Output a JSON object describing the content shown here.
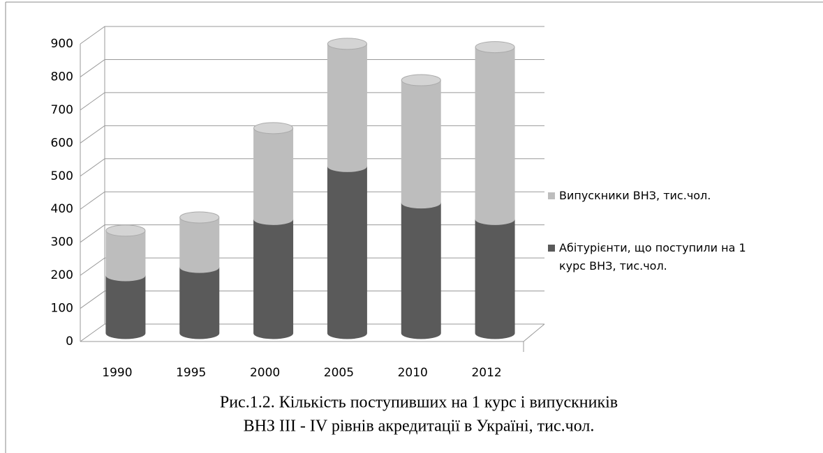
{
  "chart_data": {
    "type": "bar3d_stacked",
    "categories": [
      "1990",
      "1995",
      "2000",
      "2005",
      "2010",
      "2012"
    ],
    "series": [
      {
        "name": "Абітурієнти, що поступили на 1 курс ВНЗ, тис.чол.",
        "color": "#5a5a5a",
        "values": [
          175,
          200,
          345,
          505,
          395,
          345
        ]
      },
      {
        "name": "Випускники ВНЗ, тис.чол.",
        "color": "#bdbdbd",
        "values": [
          135,
          150,
          275,
          370,
          370,
          520
        ]
      }
    ],
    "ylim": [
      0,
      900
    ],
    "yticks": [
      0,
      100,
      200,
      300,
      400,
      500,
      600,
      700,
      800,
      900
    ],
    "grid": true,
    "legend": "right",
    "caption": [
      "Рис.1.2. Кількість поступивших на 1 курс  і випускників",
      "ВНЗ ІІІ - IV рівнів акредитації  в Україні, тис.чол."
    ]
  }
}
